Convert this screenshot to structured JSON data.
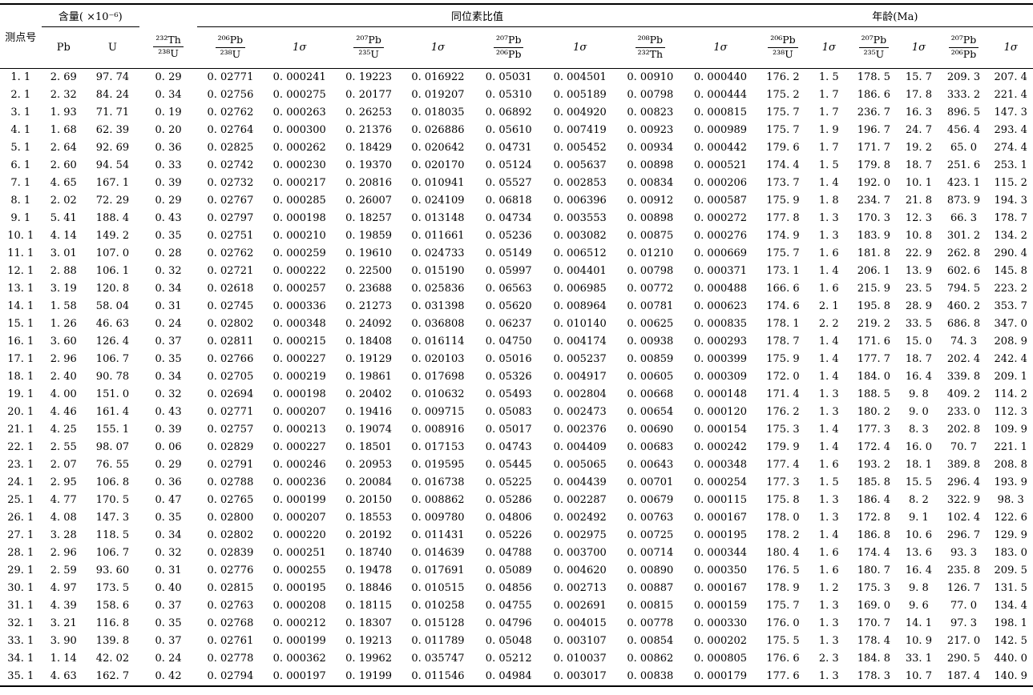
{
  "table": {
    "header": {
      "spot": "测点号",
      "groups": {
        "content": "含量( ×10⁻⁶)",
        "isotope": "同位素比值",
        "age": "年龄(Ma)"
      },
      "content_cols": {
        "pb": "Pb",
        "u": "U"
      },
      "sigma": "1σ",
      "fracs": {
        "th232_u238": {
          "num": "²³²Th",
          "den": "²³⁸U"
        },
        "pb206_u238": {
          "num": "²⁰⁶Pb",
          "den": "²³⁸U"
        },
        "pb207_u235": {
          "num": "²⁰⁷Pb",
          "den": "²³⁵U"
        },
        "pb207_pb206": {
          "num": "²⁰⁷Pb",
          "den": "²⁰⁶Pb"
        },
        "pb208_th232": {
          "num": "²⁰⁸Pb",
          "den": "²³²Th"
        }
      }
    },
    "rows": [
      [
        "1. 1",
        "2. 69",
        "97. 74",
        "0. 29",
        "0. 02771",
        "0. 000241",
        "0. 19223",
        "0. 016922",
        "0. 05031",
        "0. 004501",
        "0. 00910",
        "0. 000440",
        "176. 2",
        "1. 5",
        "178. 5",
        "15. 7",
        "209. 3",
        "207. 4"
      ],
      [
        "2. 1",
        "2. 32",
        "84. 24",
        "0. 34",
        "0. 02756",
        "0. 000275",
        "0. 20177",
        "0. 019207",
        "0. 05310",
        "0. 005189",
        "0. 00798",
        "0. 000444",
        "175. 2",
        "1. 7",
        "186. 6",
        "17. 8",
        "333. 2",
        "221. 4"
      ],
      [
        "3. 1",
        "1. 93",
        "71. 71",
        "0. 19",
        "0. 02762",
        "0. 000263",
        "0. 26253",
        "0. 018035",
        "0. 06892",
        "0. 004920",
        "0. 00823",
        "0. 000815",
        "175. 7",
        "1. 7",
        "236. 7",
        "16. 3",
        "896. 5",
        "147. 3"
      ],
      [
        "4. 1",
        "1. 68",
        "62. 39",
        "0. 20",
        "0. 02764",
        "0. 000300",
        "0. 21376",
        "0. 026886",
        "0. 05610",
        "0. 007419",
        "0. 00923",
        "0. 000989",
        "175. 7",
        "1. 9",
        "196. 7",
        "24. 7",
        "456. 4",
        "293. 4"
      ],
      [
        "5. 1",
        "2. 64",
        "92. 69",
        "0. 36",
        "0. 02825",
        "0. 000262",
        "0. 18429",
        "0. 020642",
        "0. 04731",
        "0. 005452",
        "0. 00934",
        "0. 000442",
        "179. 6",
        "1. 7",
        "171. 7",
        "19. 2",
        "65. 0",
        "274. 4"
      ],
      [
        "6. 1",
        "2. 60",
        "94. 54",
        "0. 33",
        "0. 02742",
        "0. 000230",
        "0. 19370",
        "0. 020170",
        "0. 05124",
        "0. 005637",
        "0. 00898",
        "0. 000521",
        "174. 4",
        "1. 5",
        "179. 8",
        "18. 7",
        "251. 6",
        "253. 1"
      ],
      [
        "7. 1",
        "4. 65",
        "167. 1",
        "0. 39",
        "0. 02732",
        "0. 000217",
        "0. 20816",
        "0. 010941",
        "0. 05527",
        "0. 002853",
        "0. 00834",
        "0. 000206",
        "173. 7",
        "1. 4",
        "192. 0",
        "10. 1",
        "423. 1",
        "115. 2"
      ],
      [
        "8. 1",
        "2. 02",
        "72. 29",
        "0. 29",
        "0. 02767",
        "0. 000285",
        "0. 26007",
        "0. 024109",
        "0. 06818",
        "0. 006396",
        "0. 00912",
        "0. 000587",
        "175. 9",
        "1. 8",
        "234. 7",
        "21. 8",
        "873. 9",
        "194. 3"
      ],
      [
        "9. 1",
        "5. 41",
        "188. 4",
        "0. 43",
        "0. 02797",
        "0. 000198",
        "0. 18257",
        "0. 013148",
        "0. 04734",
        "0. 003553",
        "0. 00898",
        "0. 000272",
        "177. 8",
        "1. 3",
        "170. 3",
        "12. 3",
        "66. 3",
        "178. 7"
      ],
      [
        "10. 1",
        "4. 14",
        "149. 2",
        "0. 35",
        "0. 02751",
        "0. 000210",
        "0. 19859",
        "0. 011661",
        "0. 05236",
        "0. 003082",
        "0. 00875",
        "0. 000276",
        "174. 9",
        "1. 3",
        "183. 9",
        "10. 8",
        "301. 2",
        "134. 2"
      ],
      [
        "11. 1",
        "3. 01",
        "107. 0",
        "0. 28",
        "0. 02762",
        "0. 000259",
        "0. 19610",
        "0. 024733",
        "0. 05149",
        "0. 006512",
        "0. 01210",
        "0. 000669",
        "175. 7",
        "1. 6",
        "181. 8",
        "22. 9",
        "262. 8",
        "290. 4"
      ],
      [
        "12. 1",
        "2. 88",
        "106. 1",
        "0. 32",
        "0. 02721",
        "0. 000222",
        "0. 22500",
        "0. 015190",
        "0. 05997",
        "0. 004401",
        "0. 00798",
        "0. 000371",
        "173. 1",
        "1. 4",
        "206. 1",
        "13. 9",
        "602. 6",
        "145. 8"
      ],
      [
        "13. 1",
        "3. 19",
        "120. 8",
        "0. 34",
        "0. 02618",
        "0. 000257",
        "0. 23688",
        "0. 025836",
        "0. 06563",
        "0. 006985",
        "0. 00772",
        "0. 000488",
        "166. 6",
        "1. 6",
        "215. 9",
        "23. 5",
        "794. 5",
        "223. 2"
      ],
      [
        "14. 1",
        "1. 58",
        "58. 04",
        "0. 31",
        "0. 02745",
        "0. 000336",
        "0. 21273",
        "0. 031398",
        "0. 05620",
        "0. 008964",
        "0. 00781",
        "0. 000623",
        "174. 6",
        "2. 1",
        "195. 8",
        "28. 9",
        "460. 2",
        "353. 7"
      ],
      [
        "15. 1",
        "1. 26",
        "46. 63",
        "0. 24",
        "0. 02802",
        "0. 000348",
        "0. 24092",
        "0. 036808",
        "0. 06237",
        "0. 010140",
        "0. 00625",
        "0. 000835",
        "178. 1",
        "2. 2",
        "219. 2",
        "33. 5",
        "686. 8",
        "347. 0"
      ],
      [
        "16. 1",
        "3. 60",
        "126. 4",
        "0. 37",
        "0. 02811",
        "0. 000215",
        "0. 18408",
        "0. 016114",
        "0. 04750",
        "0. 004174",
        "0. 00938",
        "0. 000293",
        "178. 7",
        "1. 4",
        "171. 6",
        "15. 0",
        "74. 3",
        "208. 9"
      ],
      [
        "17. 1",
        "2. 96",
        "106. 7",
        "0. 35",
        "0. 02766",
        "0. 000227",
        "0. 19129",
        "0. 020103",
        "0. 05016",
        "0. 005237",
        "0. 00859",
        "0. 000399",
        "175. 9",
        "1. 4",
        "177. 7",
        "18. 7",
        "202. 4",
        "242. 4"
      ],
      [
        "18. 1",
        "2. 40",
        "90. 78",
        "0. 34",
        "0. 02705",
        "0. 000219",
        "0. 19861",
        "0. 017698",
        "0. 05326",
        "0. 004917",
        "0. 00605",
        "0. 000309",
        "172. 0",
        "1. 4",
        "184. 0",
        "16. 4",
        "339. 8",
        "209. 1"
      ],
      [
        "19. 1",
        "4. 00",
        "151. 0",
        "0. 32",
        "0. 02694",
        "0. 000198",
        "0. 20402",
        "0. 010632",
        "0. 05493",
        "0. 002804",
        "0. 00668",
        "0. 000148",
        "171. 4",
        "1. 3",
        "188. 5",
        "9. 8",
        "409. 2",
        "114. 2"
      ],
      [
        "20. 1",
        "4. 46",
        "161. 4",
        "0. 43",
        "0. 02771",
        "0. 000207",
        "0. 19416",
        "0. 009715",
        "0. 05083",
        "0. 002473",
        "0. 00654",
        "0. 000120",
        "176. 2",
        "1. 3",
        "180. 2",
        "9. 0",
        "233. 0",
        "112. 3"
      ],
      [
        "21. 1",
        "4. 25",
        "155. 1",
        "0. 39",
        "0. 02757",
        "0. 000213",
        "0. 19074",
        "0. 008916",
        "0. 05017",
        "0. 002376",
        "0. 00690",
        "0. 000154",
        "175. 3",
        "1. 4",
        "177. 3",
        "8. 3",
        "202. 8",
        "109. 9"
      ],
      [
        "22. 1",
        "2. 55",
        "98. 07",
        "0. 06",
        "0. 02829",
        "0. 000227",
        "0. 18501",
        "0. 017153",
        "0. 04743",
        "0. 004409",
        "0. 00683",
        "0. 000242",
        "179. 9",
        "1. 4",
        "172. 4",
        "16. 0",
        "70. 7",
        "221. 1"
      ],
      [
        "23. 1",
        "2. 07",
        "76. 55",
        "0. 29",
        "0. 02791",
        "0. 000246",
        "0. 20953",
        "0. 019595",
        "0. 05445",
        "0. 005065",
        "0. 00643",
        "0. 000348",
        "177. 4",
        "1. 6",
        "193. 2",
        "18. 1",
        "389. 8",
        "208. 8"
      ],
      [
        "24. 1",
        "2. 95",
        "106. 8",
        "0. 36",
        "0. 02788",
        "0. 000236",
        "0. 20084",
        "0. 016738",
        "0. 05225",
        "0. 004439",
        "0. 00701",
        "0. 000254",
        "177. 3",
        "1. 5",
        "185. 8",
        "15. 5",
        "296. 4",
        "193. 9"
      ],
      [
        "25. 1",
        "4. 77",
        "170. 5",
        "0. 47",
        "0. 02765",
        "0. 000199",
        "0. 20150",
        "0. 008862",
        "0. 05286",
        "0. 002287",
        "0. 00679",
        "0. 000115",
        "175. 8",
        "1. 3",
        "186. 4",
        "8. 2",
        "322. 9",
        "98. 3"
      ],
      [
        "26. 1",
        "4. 08",
        "147. 3",
        "0. 35",
        "0. 02800",
        "0. 000207",
        "0. 18553",
        "0. 009780",
        "0. 04806",
        "0. 002492",
        "0. 00763",
        "0. 000167",
        "178. 0",
        "1. 3",
        "172. 8",
        "9. 1",
        "102. 4",
        "122. 6"
      ],
      [
        "27. 1",
        "3. 28",
        "118. 5",
        "0. 34",
        "0. 02802",
        "0. 000220",
        "0. 20192",
        "0. 011431",
        "0. 05226",
        "0. 002975",
        "0. 00725",
        "0. 000195",
        "178. 2",
        "1. 4",
        "186. 8",
        "10. 6",
        "296. 7",
        "129. 9"
      ],
      [
        "28. 1",
        "2. 96",
        "106. 7",
        "0. 32",
        "0. 02839",
        "0. 000251",
        "0. 18740",
        "0. 014639",
        "0. 04788",
        "0. 003700",
        "0. 00714",
        "0. 000344",
        "180. 4",
        "1. 6",
        "174. 4",
        "13. 6",
        "93. 3",
        "183. 0"
      ],
      [
        "29. 1",
        "2. 59",
        "93. 60",
        "0. 31",
        "0. 02776",
        "0. 000255",
        "0. 19478",
        "0. 017691",
        "0. 05089",
        "0. 004620",
        "0. 00890",
        "0. 000350",
        "176. 5",
        "1. 6",
        "180. 7",
        "16. 4",
        "235. 8",
        "209. 5"
      ],
      [
        "30. 1",
        "4. 97",
        "173. 5",
        "0. 40",
        "0. 02815",
        "0. 000195",
        "0. 18846",
        "0. 010515",
        "0. 04856",
        "0. 002713",
        "0. 00887",
        "0. 000167",
        "178. 9",
        "1. 2",
        "175. 3",
        "9. 8",
        "126. 7",
        "131. 5"
      ],
      [
        "31. 1",
        "4. 39",
        "158. 6",
        "0. 37",
        "0. 02763",
        "0. 000208",
        "0. 18115",
        "0. 010258",
        "0. 04755",
        "0. 002691",
        "0. 00815",
        "0. 000159",
        "175. 7",
        "1. 3",
        "169. 0",
        "9. 6",
        "77. 0",
        "134. 4"
      ],
      [
        "32. 1",
        "3. 21",
        "116. 8",
        "0. 35",
        "0. 02768",
        "0. 000212",
        "0. 18307",
        "0. 015128",
        "0. 04796",
        "0. 004015",
        "0. 00778",
        "0. 000330",
        "176. 0",
        "1. 3",
        "170. 7",
        "14. 1",
        "97. 3",
        "198. 1"
      ],
      [
        "33. 1",
        "3. 90",
        "139. 8",
        "0. 37",
        "0. 02761",
        "0. 000199",
        "0. 19213",
        "0. 011789",
        "0. 05048",
        "0. 003107",
        "0. 00854",
        "0. 000202",
        "175. 5",
        "1. 3",
        "178. 4",
        "10. 9",
        "217. 0",
        "142. 5"
      ],
      [
        "34. 1",
        "1. 14",
        "42. 02",
        "0. 24",
        "0. 02778",
        "0. 000362",
        "0. 19962",
        "0. 035747",
        "0. 05212",
        "0. 010037",
        "0. 00862",
        "0. 000805",
        "176. 6",
        "2. 3",
        "184. 8",
        "33. 1",
        "290. 5",
        "440. 0"
      ],
      [
        "35. 1",
        "4. 63",
        "162. 7",
        "0. 42",
        "0. 02794",
        "0. 000197",
        "0. 19199",
        "0. 011546",
        "0. 04984",
        "0. 003017",
        "0. 00838",
        "0. 000179",
        "177. 6",
        "1. 3",
        "178. 3",
        "10. 7",
        "187. 4",
        "140. 9"
      ]
    ]
  }
}
